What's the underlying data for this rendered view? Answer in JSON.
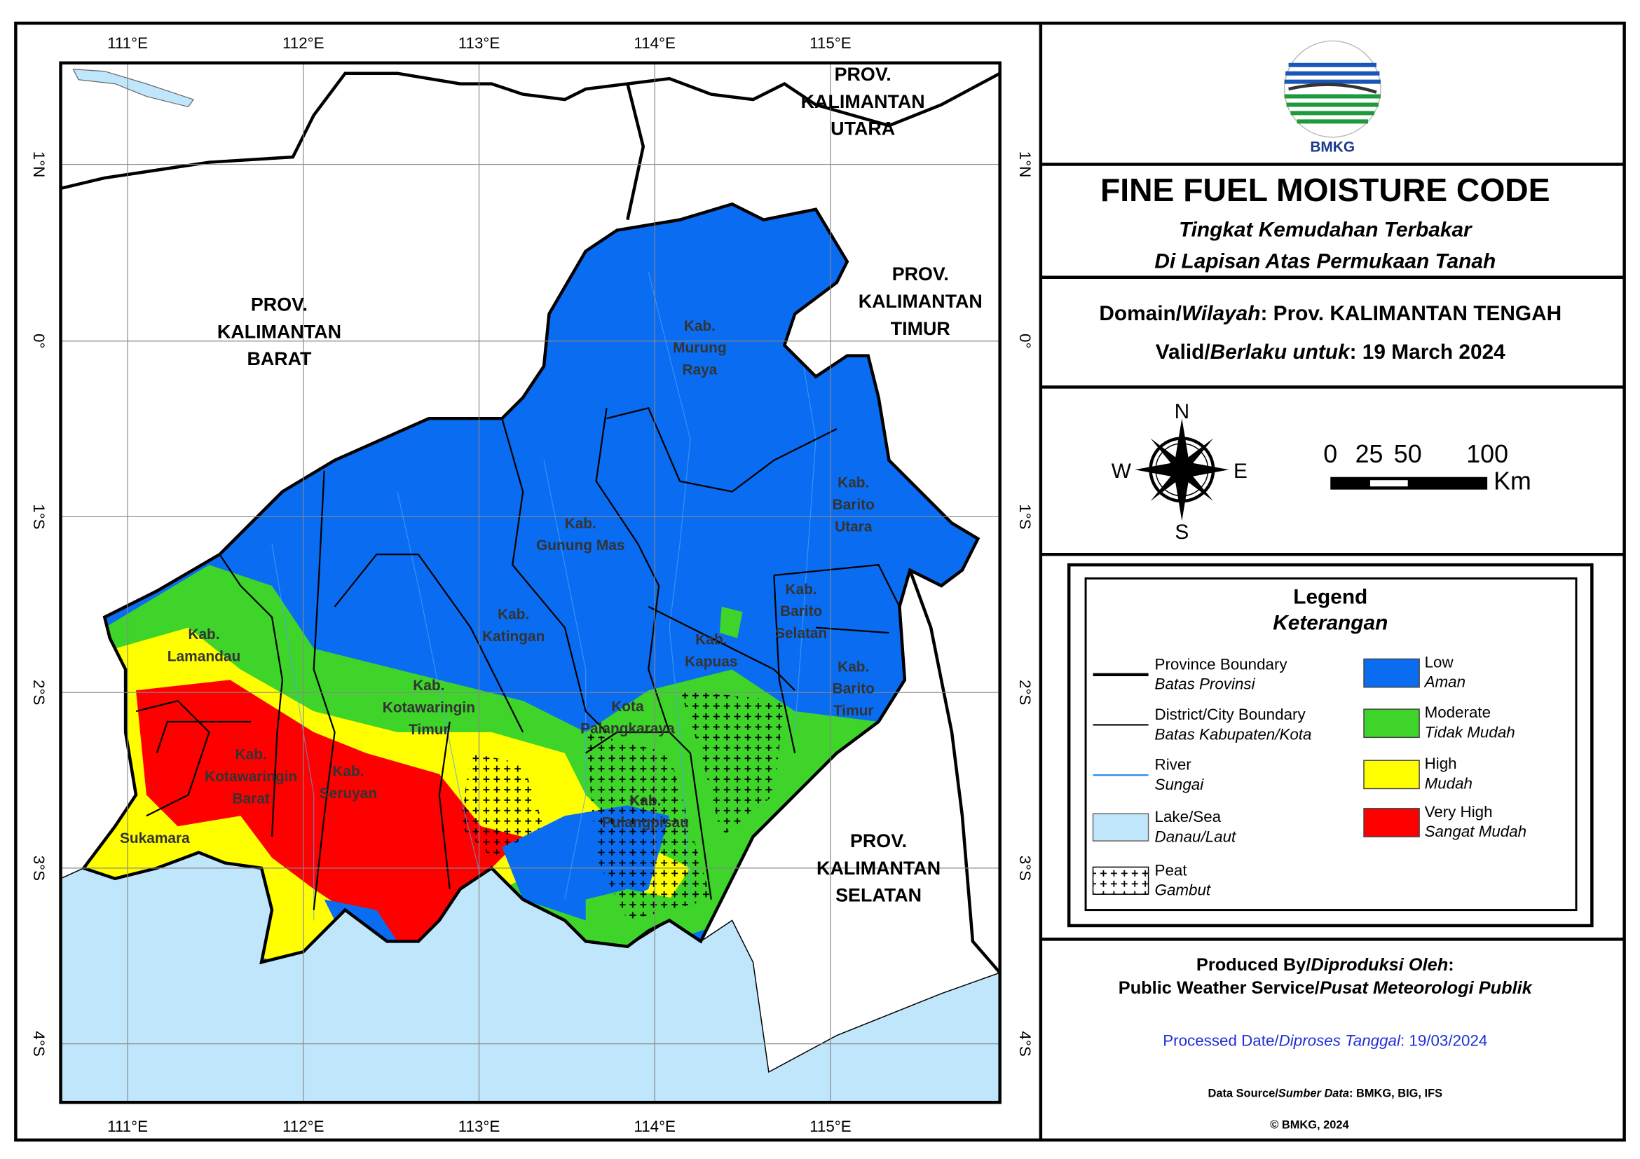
{
  "map": {
    "lon_labels": [
      "111°E",
      "112°E",
      "113°E",
      "114°E",
      "115°E"
    ],
    "lat_labels": [
      "1°N",
      "0°",
      "1°S",
      "2°S",
      "3°S",
      "4°S"
    ],
    "provinces": [
      {
        "lines": [
          "PROV.",
          "KALIMANTAN",
          "UTARA"
        ]
      },
      {
        "lines": [
          "PROV.",
          "KALIMANTAN",
          "BARAT"
        ]
      },
      {
        "lines": [
          "PROV.",
          "KALIMANTAN",
          "TIMUR"
        ]
      },
      {
        "lines": [
          "PROV.",
          "KALIMANTAN",
          "SELATAN"
        ]
      }
    ],
    "districts": [
      {
        "lines": [
          "Kab.",
          "Murung",
          "Raya"
        ]
      },
      {
        "lines": [
          "Kab.",
          "Barito",
          "Utara"
        ]
      },
      {
        "lines": [
          "Kab.",
          "Gunung Mas"
        ]
      },
      {
        "lines": [
          "Kab.",
          "Katingan"
        ]
      },
      {
        "lines": [
          "Kab.",
          "Barito",
          "Selatan"
        ]
      },
      {
        "lines": [
          "Kab.",
          "Kapuas"
        ]
      },
      {
        "lines": [
          "Kab.",
          "Barito",
          "Timur"
        ]
      },
      {
        "lines": [
          "Kab.",
          "Lamandau"
        ]
      },
      {
        "lines": [
          "Kab.",
          "Kotawaringin",
          "Timur"
        ]
      },
      {
        "lines": [
          "Kota",
          "Palangkaraya"
        ]
      },
      {
        "lines": [
          "Kab.",
          "Kotawaringin",
          "Barat"
        ]
      },
      {
        "lines": [
          "Kab.",
          "Seruyan"
        ]
      },
      {
        "lines": [
          "Kab.",
          "Pulangpisau"
        ]
      },
      {
        "lines": [
          "Sukamara"
        ]
      }
    ]
  },
  "header": {
    "logo_text": "BMKG",
    "title": "FINE FUEL MOISTURE CODE",
    "subtitle": [
      "Tingkat Kemudahan Terbakar",
      "Di Lapisan Atas Permukaan Tanah"
    ]
  },
  "domain": [
    {
      "text": "Domain/",
      "italic": false
    },
    {
      "text": "Wilayah",
      "italic": true
    },
    {
      "text": ": Prov. KALIMANTAN TENGAH",
      "italic": false
    }
  ],
  "valid": [
    {
      "text": "Valid/",
      "italic": false
    },
    {
      "text": "Berlaku untuk",
      "italic": true
    },
    {
      "text": ": 19 March 2024",
      "italic": false
    }
  ],
  "compass": {
    "n": "N",
    "s": "S",
    "e": "E",
    "w": "W"
  },
  "scale": {
    "ticks": [
      0,
      25,
      50,
      100
    ],
    "unit": "Km"
  },
  "legend": {
    "title": "Legend",
    "subtitle": "Keterangan",
    "features": [
      {
        "label": "Province Boundary",
        "label_id": "Batas Provinsi"
      },
      {
        "label": "District/City Boundary",
        "label_id": "Batas Kabupaten/Kota"
      },
      {
        "label": "River",
        "label_id": "Sungai"
      },
      {
        "label": "Lake/Sea",
        "label_id": "Danau/Laut"
      },
      {
        "label": "Peat",
        "label_id": "Gambut"
      }
    ],
    "classes": [
      {
        "label": "Low",
        "label_id": "Aman",
        "color": "#0a6cf0"
      },
      {
        "label": "Moderate",
        "label_id": "Tidak Mudah",
        "color": "#3ed42a"
      },
      {
        "label": "High",
        "label_id": "Mudah",
        "color": "#ffff00"
      },
      {
        "label": "Very High",
        "label_id": "Sangat Mudah",
        "color": "#ff0000"
      }
    ]
  },
  "credits": {
    "produced": [
      {
        "text": "Produced By/",
        "italic": false
      },
      {
        "text": "Diproduksi Oleh",
        "italic": true
      },
      {
        "text": ":",
        "italic": false
      }
    ],
    "organization": [
      {
        "text": "Public Weather Service/",
        "italic": false
      },
      {
        "text": "Pusat Meteorologi Publik",
        "italic": true
      }
    ],
    "processed": [
      {
        "text": "Processed Date/",
        "italic": false
      },
      {
        "text": "Diproses Tanggal",
        "italic": true
      },
      {
        "text": ": 19/03/2024",
        "italic": false
      }
    ],
    "source": [
      {
        "text": "Data Source/",
        "italic": false
      },
      {
        "text": "Sumber Data",
        "italic": true
      },
      {
        "text": ": BMKG, BIG, IFS",
        "italic": false
      }
    ],
    "copyright": "© BMKG, 2024"
  }
}
